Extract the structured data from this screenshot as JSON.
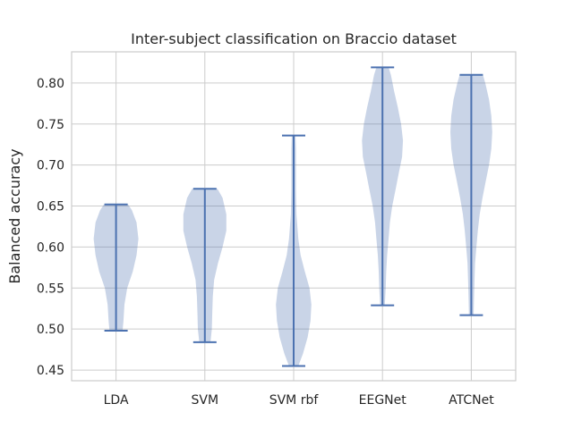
{
  "chart_data": {
    "type": "violin",
    "title": "Inter-subject classification on Braccio dataset",
    "xlabel": "",
    "ylabel": "Balanced accuracy",
    "ylim": [
      0.437,
      0.838
    ],
    "yticks": [
      "0.45",
      "0.50",
      "0.55",
      "0.60",
      "0.65",
      "0.70",
      "0.75",
      "0.80"
    ],
    "grid": true,
    "color": "#4c72b0",
    "categories": [
      "LDA",
      "SVM",
      "SVM rbf",
      "EEGNet",
      "ATCNet"
    ],
    "series": [
      {
        "category": "LDA",
        "min": 0.498,
        "max": 0.652,
        "density": [
          [
            0.498,
            0.014
          ],
          [
            0.51,
            0.016
          ],
          [
            0.53,
            0.018
          ],
          [
            0.55,
            0.024
          ],
          [
            0.57,
            0.036
          ],
          [
            0.59,
            0.044
          ],
          [
            0.61,
            0.048
          ],
          [
            0.63,
            0.044
          ],
          [
            0.645,
            0.034
          ],
          [
            0.652,
            0.026
          ]
        ]
      },
      {
        "category": "SVM",
        "min": 0.484,
        "max": 0.671,
        "density": [
          [
            0.484,
            0.012
          ],
          [
            0.5,
            0.015
          ],
          [
            0.52,
            0.016
          ],
          [
            0.54,
            0.017
          ],
          [
            0.56,
            0.02
          ],
          [
            0.58,
            0.028
          ],
          [
            0.6,
            0.038
          ],
          [
            0.62,
            0.046
          ],
          [
            0.64,
            0.046
          ],
          [
            0.66,
            0.038
          ],
          [
            0.671,
            0.027
          ]
        ]
      },
      {
        "category": "SVM rbf",
        "min": 0.455,
        "max": 0.736,
        "density": [
          [
            0.455,
            0.01
          ],
          [
            0.47,
            0.02
          ],
          [
            0.49,
            0.03
          ],
          [
            0.51,
            0.036
          ],
          [
            0.53,
            0.038
          ],
          [
            0.55,
            0.034
          ],
          [
            0.57,
            0.024
          ],
          [
            0.59,
            0.015
          ],
          [
            0.61,
            0.01
          ],
          [
            0.64,
            0.006
          ],
          [
            0.67,
            0.005
          ],
          [
            0.7,
            0.005
          ],
          [
            0.72,
            0.005
          ],
          [
            0.736,
            0.004
          ]
        ]
      },
      {
        "category": "EEGNet",
        "min": 0.529,
        "max": 0.819,
        "density": [
          [
            0.529,
            0.005
          ],
          [
            0.55,
            0.007
          ],
          [
            0.57,
            0.008
          ],
          [
            0.59,
            0.01
          ],
          [
            0.61,
            0.013
          ],
          [
            0.63,
            0.016
          ],
          [
            0.65,
            0.021
          ],
          [
            0.67,
            0.028
          ],
          [
            0.69,
            0.035
          ],
          [
            0.71,
            0.042
          ],
          [
            0.73,
            0.044
          ],
          [
            0.75,
            0.04
          ],
          [
            0.77,
            0.033
          ],
          [
            0.79,
            0.025
          ],
          [
            0.81,
            0.018
          ],
          [
            0.819,
            0.013
          ]
        ]
      },
      {
        "category": "ATCNet",
        "min": 0.517,
        "max": 0.81,
        "density": [
          [
            0.517,
            0.005
          ],
          [
            0.54,
            0.006
          ],
          [
            0.56,
            0.007
          ],
          [
            0.58,
            0.008
          ],
          [
            0.6,
            0.011
          ],
          [
            0.62,
            0.014
          ],
          [
            0.64,
            0.018
          ],
          [
            0.66,
            0.024
          ],
          [
            0.68,
            0.031
          ],
          [
            0.7,
            0.038
          ],
          [
            0.72,
            0.043
          ],
          [
            0.74,
            0.045
          ],
          [
            0.76,
            0.043
          ],
          [
            0.78,
            0.038
          ],
          [
            0.8,
            0.03
          ],
          [
            0.81,
            0.025
          ]
        ]
      }
    ]
  }
}
